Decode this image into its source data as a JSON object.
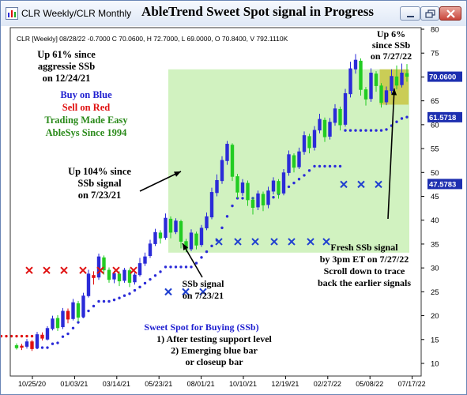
{
  "window": {
    "tab_title": "CLR Weekly/CLR Monthly",
    "chart_title": "AbleTrend Sweet Spot signal in Progress"
  },
  "header_info": "CLR [Weekly] 08/28/22 -0.7000 C 70.0600, H 72.7000, L 69.0000, O 70.8400, V 792.1110K",
  "annotations": {
    "up61": [
      "Up 61% since",
      "aggressie SSb",
      "on 12/24/21"
    ],
    "legend": [
      {
        "text": "Buy on Blue",
        "color": "#1f1fd0"
      },
      {
        "text": "Sell on Red",
        "color": "#e01010"
      },
      {
        "text": "Trading Made Easy",
        "color": "#2a8a1a"
      },
      {
        "text": "AbleSys Since 1994",
        "color": "#2a8a1a"
      }
    ],
    "up104": [
      "Up 104% since",
      "SSb signal",
      "on 7/23/21"
    ],
    "up6": [
      "Up 6%",
      "since SSb",
      "on 7/27/22"
    ],
    "ssb": [
      "SSb signal",
      "on 7/23/21"
    ],
    "fresh": [
      "Fresh SSb signal",
      "by 3pm ET on 7/27/22",
      "Scroll down to trace",
      "back the earlier signals"
    ],
    "sweet_title": "Sweet Spot for Buying (SSb)",
    "sweet_items": [
      "1) After testing support level",
      "2) Emerging blue bar",
      "or closeup bar"
    ]
  },
  "colors": {
    "up_bar": "#2b2bd8",
    "down_bar": "#e01010",
    "neutral_bar": "#22cc22",
    "highlight_green": "#c9f0b5",
    "highlight_yellow": "#c9c94a",
    "price_label_bg": "#1d2fb0",
    "sell_x": "#e01010",
    "buy_x": "#1f3fd0"
  },
  "chart_data": {
    "type": "candlestick",
    "symbol": "CLR",
    "y_axis": {
      "min": 10,
      "max": 80,
      "ticks": [
        10,
        15,
        20,
        25,
        30,
        35,
        40,
        45,
        50,
        55,
        60,
        65,
        70,
        75,
        80
      ]
    },
    "x_axis": {
      "labels": [
        "10/25/20",
        "01/03/21",
        "03/14/21",
        "05/23/21",
        "08/01/21",
        "10/10/21",
        "12/19/21",
        "02/27/22",
        "05/08/22",
        "07/17/22"
      ]
    },
    "price_labels": [
      {
        "value": "70.0600",
        "y": 70.06
      },
      {
        "value": "61.5718",
        "y": 61.57
      },
      {
        "value": "47.5783",
        "y": 47.58
      }
    ],
    "bars": [
      [
        13.2,
        13.8,
        12.9,
        14.2,
        "green"
      ],
      [
        13.7,
        13.3,
        12.8,
        14.1,
        "red"
      ],
      [
        13.5,
        14.6,
        13.1,
        15.1,
        "blue"
      ],
      [
        14.6,
        13.0,
        12.6,
        14.9,
        "red"
      ],
      [
        13.2,
        16.1,
        13.0,
        16.6,
        "blue"
      ],
      [
        16.0,
        15.2,
        14.8,
        16.5,
        "red"
      ],
      [
        15.0,
        17.4,
        14.8,
        17.8,
        "blue"
      ],
      [
        17.2,
        19.4,
        16.9,
        20.0,
        "blue"
      ],
      [
        19.5,
        17.4,
        16.8,
        20.1,
        "green"
      ],
      [
        17.6,
        21.0,
        17.2,
        21.6,
        "blue"
      ],
      [
        21.0,
        19.2,
        18.4,
        21.5,
        "red"
      ],
      [
        19.3,
        22.8,
        19.0,
        23.5,
        "blue"
      ],
      [
        22.6,
        19.6,
        18.8,
        23.1,
        "green"
      ],
      [
        19.8,
        24.2,
        19.5,
        24.8,
        "blue"
      ],
      [
        24.1,
        28.8,
        23.8,
        29.6,
        "blue"
      ],
      [
        28.5,
        27.9,
        26.5,
        29.3,
        "red"
      ],
      [
        28.0,
        32.4,
        27.5,
        33.0,
        "blue"
      ],
      [
        32.2,
        29.5,
        28.6,
        32.6,
        "green"
      ],
      [
        29.6,
        27.5,
        26.9,
        30.1,
        "green"
      ],
      [
        27.6,
        28.9,
        26.8,
        29.4,
        "blue"
      ],
      [
        28.8,
        27.2,
        26.2,
        29.3,
        "green"
      ],
      [
        27.3,
        29.6,
        26.9,
        30.0,
        "blue"
      ],
      [
        29.5,
        26.9,
        26.0,
        29.9,
        "green"
      ],
      [
        27.0,
        28.6,
        26.5,
        29.0,
        "blue"
      ],
      [
        28.5,
        31.0,
        28.2,
        32.1,
        "blue"
      ],
      [
        30.9,
        32.4,
        30.4,
        33.2,
        "blue"
      ],
      [
        32.5,
        35.1,
        32.1,
        35.9,
        "blue"
      ],
      [
        35.0,
        37.5,
        34.6,
        38.2,
        "blue"
      ],
      [
        37.4,
        36.2,
        35.1,
        37.9,
        "green"
      ],
      [
        36.3,
        40.5,
        35.9,
        41.4,
        "blue"
      ],
      [
        40.3,
        37.4,
        36.2,
        40.8,
        "green"
      ],
      [
        37.5,
        39.9,
        37.1,
        40.4,
        "blue"
      ],
      [
        39.8,
        35.5,
        34.1,
        40.1,
        "green"
      ],
      [
        35.6,
        33.9,
        33.3,
        36.1,
        "green"
      ],
      [
        33.9,
        37.4,
        33.5,
        38.1,
        "blue"
      ],
      [
        37.2,
        34.7,
        33.9,
        37.6,
        "green"
      ],
      [
        34.8,
        38.4,
        34.4,
        39.0,
        "blue"
      ],
      [
        38.3,
        40.8,
        37.9,
        41.6,
        "blue"
      ],
      [
        40.6,
        45.9,
        40.2,
        46.8,
        "blue"
      ],
      [
        45.7,
        48.4,
        45.0,
        49.6,
        "blue"
      ],
      [
        48.2,
        52.6,
        47.6,
        53.4,
        "blue"
      ],
      [
        52.4,
        56.0,
        51.6,
        56.6,
        "blue"
      ],
      [
        55.8,
        49.1,
        48.2,
        56.1,
        "green"
      ],
      [
        49.2,
        45.8,
        44.6,
        49.7,
        "green"
      ],
      [
        45.7,
        47.9,
        45.1,
        48.6,
        "blue"
      ],
      [
        47.8,
        44.2,
        43.0,
        48.3,
        "green"
      ],
      [
        44.3,
        42.6,
        41.2,
        44.8,
        "green"
      ],
      [
        42.7,
        45.6,
        42.1,
        46.2,
        "blue"
      ],
      [
        45.5,
        43.1,
        41.9,
        46.0,
        "green"
      ],
      [
        43.2,
        46.2,
        42.5,
        47.0,
        "blue"
      ],
      [
        46.0,
        48.3,
        45.4,
        49.0,
        "blue"
      ],
      [
        48.2,
        45.5,
        44.5,
        48.6,
        "green"
      ],
      [
        45.6,
        50.0,
        45.2,
        50.7,
        "blue"
      ],
      [
        49.9,
        53.8,
        49.3,
        54.6,
        "blue"
      ],
      [
        53.6,
        51.0,
        50.0,
        54.0,
        "green"
      ],
      [
        51.1,
        54.4,
        50.7,
        55.2,
        "blue"
      ],
      [
        54.3,
        57.8,
        53.7,
        58.6,
        "blue"
      ],
      [
        57.6,
        55.1,
        54.0,
        58.1,
        "green"
      ],
      [
        55.2,
        58.9,
        54.6,
        59.7,
        "blue"
      ],
      [
        58.8,
        61.2,
        58.2,
        62.3,
        "blue"
      ],
      [
        61.0,
        57.4,
        56.4,
        61.5,
        "green"
      ],
      [
        57.5,
        60.6,
        56.9,
        61.4,
        "blue"
      ],
      [
        60.4,
        63.4,
        59.8,
        64.3,
        "blue"
      ],
      [
        63.3,
        59.9,
        58.8,
        63.8,
        "green"
      ],
      [
        60.0,
        66.6,
        59.6,
        67.5,
        "blue"
      ],
      [
        66.4,
        71.8,
        65.7,
        73.2,
        "blue"
      ],
      [
        71.6,
        73.6,
        70.7,
        74.8,
        "blue"
      ],
      [
        73.4,
        67.3,
        66.1,
        73.9,
        "green"
      ],
      [
        67.4,
        65.3,
        64.0,
        67.9,
        "green"
      ],
      [
        65.4,
        70.9,
        64.8,
        71.8,
        "blue"
      ],
      [
        70.7,
        68.1,
        66.9,
        71.2,
        "green"
      ],
      [
        68.2,
        64.6,
        63.6,
        68.7,
        "green"
      ],
      [
        64.7,
        67.2,
        64.1,
        68.0,
        "blue"
      ],
      [
        67.1,
        70.2,
        66.5,
        71.6,
        "blue"
      ],
      [
        70.1,
        68.2,
        67.4,
        72.4,
        "green"
      ],
      [
        68.3,
        70.9,
        67.8,
        72.8,
        "blue"
      ],
      [
        70.8,
        70.06,
        69.0,
        72.7,
        "green"
      ]
    ],
    "support_dots_blue": [
      [
        4,
        13.3
      ],
      [
        5,
        13.3
      ],
      [
        6,
        13.3
      ],
      [
        7,
        14.1
      ],
      [
        8,
        14.3
      ],
      [
        9,
        15.6
      ],
      [
        10,
        16.2
      ],
      [
        11,
        17.4
      ],
      [
        12,
        18.6
      ],
      [
        13,
        19.8
      ],
      [
        14,
        21.0
      ],
      [
        15,
        22.0
      ],
      [
        16,
        23.0
      ],
      [
        17,
        23.0
      ],
      [
        18,
        23.0
      ],
      [
        19,
        23.3
      ],
      [
        20,
        23.7
      ],
      [
        21,
        24.2
      ],
      [
        22,
        24.6
      ],
      [
        23,
        25.3
      ],
      [
        24,
        26.0
      ],
      [
        25,
        26.8
      ],
      [
        26,
        27.6
      ],
      [
        27,
        28.4
      ],
      [
        28,
        29.2
      ],
      [
        29,
        30.2
      ],
      [
        30,
        30.2
      ],
      [
        31,
        30.2
      ],
      [
        32,
        30.2
      ],
      [
        33,
        30.2
      ],
      [
        34,
        30.2
      ],
      [
        35,
        31.0
      ],
      [
        36,
        32.2
      ],
      [
        37,
        33.4
      ],
      [
        38,
        34.6
      ],
      [
        39,
        35.8
      ],
      [
        40,
        38.4
      ],
      [
        41,
        40.8
      ],
      [
        42,
        43.0
      ],
      [
        43,
        44.6
      ],
      [
        44,
        44.6
      ],
      [
        45,
        44.6
      ],
      [
        46,
        44.6
      ],
      [
        47,
        44.6
      ],
      [
        48,
        44.6
      ],
      [
        49,
        44.6
      ],
      [
        50,
        44.8
      ],
      [
        51,
        45.5
      ],
      [
        52,
        46.2
      ],
      [
        53,
        47.0
      ],
      [
        54,
        47.8
      ],
      [
        55,
        48.6
      ],
      [
        56,
        49.4
      ],
      [
        57,
        50.4
      ],
      [
        58,
        51.3
      ],
      [
        59,
        51.3
      ],
      [
        60,
        51.3
      ],
      [
        61,
        51.3
      ],
      [
        62,
        51.3
      ],
      [
        63,
        51.3
      ],
      [
        64,
        58.8
      ],
      [
        65,
        58.8
      ],
      [
        66,
        58.8
      ],
      [
        67,
        58.8
      ],
      [
        68,
        58.8
      ],
      [
        69,
        58.8
      ],
      [
        70,
        58.8
      ],
      [
        71,
        58.8
      ],
      [
        72,
        59.0
      ],
      [
        73,
        59.8
      ],
      [
        74,
        60.6
      ],
      [
        75,
        61.3
      ],
      [
        76,
        61.6
      ]
    ],
    "resistance_dots_red": [
      [
        -3,
        15.7
      ],
      [
        -2,
        15.7
      ],
      [
        -1,
        15.7
      ],
      [
        0,
        15.7
      ],
      [
        1,
        15.7
      ],
      [
        2,
        15.7
      ],
      [
        3,
        15.7
      ],
      [
        4,
        15.7
      ],
      [
        5,
        15.7
      ]
    ],
    "sell_marks": [
      [
        0,
        29.5
      ],
      [
        3,
        29.5
      ],
      [
        6,
        29.5
      ],
      [
        10,
        29.5
      ],
      [
        14,
        29.5
      ],
      [
        17,
        29.5
      ],
      [
        20,
        29.5
      ]
    ],
    "buy_marks": [
      [
        28,
        25.0
      ],
      [
        31,
        25.0
      ],
      [
        34,
        25.0
      ],
      [
        37,
        35.5
      ],
      [
        41,
        35.5
      ],
      [
        45,
        35.5
      ],
      [
        49,
        35.5
      ],
      [
        53,
        35.5
      ],
      [
        57,
        35.5
      ],
      [
        61,
        35.5
      ],
      [
        64,
        47.5
      ],
      [
        67,
        47.5
      ],
      [
        71,
        47.5
      ]
    ],
    "green_zone": {
      "from_bar": 30,
      "to_bar": 76,
      "y_from": 33.2,
      "y_to": 71.6
    },
    "yellow_zone": {
      "from_bar": 71,
      "to_bar": 76,
      "y_from": 64.2,
      "y_to": 71.6
    }
  }
}
